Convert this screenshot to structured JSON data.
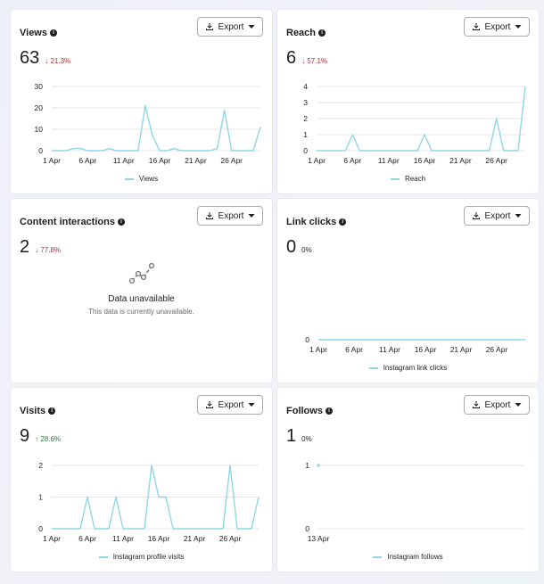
{
  "export_label": "Export",
  "cards": [
    {
      "id": "views",
      "title": "Views",
      "value": "63",
      "delta": "21.3%",
      "delta_dir": "down",
      "legend": "Views",
      "chart_data": {
        "type": "line",
        "x_tick_labels": [
          "1 Apr",
          "6 Apr",
          "11 Apr",
          "16 Apr",
          "21 Apr",
          "26 Apr"
        ],
        "y_ticks": [
          0,
          10,
          20,
          30
        ],
        "ylim": [
          0,
          30
        ],
        "x": [
          "1 Apr",
          "2 Apr",
          "3 Apr",
          "4 Apr",
          "5 Apr",
          "6 Apr",
          "7 Apr",
          "8 Apr",
          "9 Apr",
          "10 Apr",
          "11 Apr",
          "12 Apr",
          "13 Apr",
          "14 Apr",
          "15 Apr",
          "16 Apr",
          "17 Apr",
          "18 Apr",
          "19 Apr",
          "20 Apr",
          "21 Apr",
          "22 Apr",
          "23 Apr",
          "24 Apr",
          "25 Apr",
          "26 Apr",
          "27 Apr",
          "28 Apr",
          "29 Apr",
          "30 Apr"
        ],
        "series": [
          {
            "name": "Views",
            "color": "#8fd6e8",
            "values": [
              0,
              0,
              0,
              1,
              1,
              0,
              0,
              0,
              1,
              0,
              0,
              0,
              0,
              21,
              7,
              0,
              0,
              1,
              0,
              0,
              0,
              0,
              0,
              1,
              19,
              0,
              0,
              0,
              0,
              11
            ]
          }
        ]
      }
    },
    {
      "id": "reach",
      "title": "Reach",
      "value": "6",
      "delta": "57.1%",
      "delta_dir": "down",
      "legend": "Reach",
      "chart_data": {
        "type": "line",
        "x_tick_labels": [
          "1 Apr",
          "6 Apr",
          "11 Apr",
          "16 Apr",
          "21 Apr",
          "26 Apr"
        ],
        "y_ticks": [
          0,
          1,
          2,
          3,
          4
        ],
        "ylim": [
          0,
          4
        ],
        "x": [
          "1 Apr",
          "2 Apr",
          "3 Apr",
          "4 Apr",
          "5 Apr",
          "6 Apr",
          "7 Apr",
          "8 Apr",
          "9 Apr",
          "10 Apr",
          "11 Apr",
          "12 Apr",
          "13 Apr",
          "14 Apr",
          "15 Apr",
          "16 Apr",
          "17 Apr",
          "18 Apr",
          "19 Apr",
          "20 Apr",
          "21 Apr",
          "22 Apr",
          "23 Apr",
          "24 Apr",
          "25 Apr",
          "26 Apr",
          "27 Apr",
          "28 Apr",
          "29 Apr",
          "30 Apr"
        ],
        "series": [
          {
            "name": "Reach",
            "color": "#8fd6e8",
            "values": [
              0,
              0,
              0,
              0,
              0,
              1,
              0,
              0,
              0,
              0,
              0,
              0,
              0,
              0,
              0,
              1,
              0,
              0,
              0,
              0,
              0,
              0,
              0,
              0,
              0,
              2,
              0,
              0,
              0,
              4
            ]
          }
        ]
      }
    },
    {
      "id": "content-interactions",
      "title": "Content interactions",
      "value": "2",
      "delta": "77.8%",
      "delta_dir": "down",
      "unavailable_title": "Data unavailable",
      "unavailable_sub": "This data is currently unavailable."
    },
    {
      "id": "link-clicks",
      "title": "Link clicks",
      "value": "0",
      "delta": "0%",
      "delta_dir": "neutral",
      "legend": "Instagram link clicks",
      "chart_data": {
        "type": "line",
        "x_tick_labels": [
          "1 Apr",
          "6 Apr",
          "11 Apr",
          "16 Apr",
          "21 Apr",
          "26 Apr"
        ],
        "y_ticks": [
          0
        ],
        "ylim": [
          0,
          1
        ],
        "x": [
          "1 Apr",
          "2 Apr",
          "3 Apr",
          "4 Apr",
          "5 Apr",
          "6 Apr",
          "7 Apr",
          "8 Apr",
          "9 Apr",
          "10 Apr",
          "11 Apr",
          "12 Apr",
          "13 Apr",
          "14 Apr",
          "15 Apr",
          "16 Apr",
          "17 Apr",
          "18 Apr",
          "19 Apr",
          "20 Apr",
          "21 Apr",
          "22 Apr",
          "23 Apr",
          "24 Apr",
          "25 Apr",
          "26 Apr",
          "27 Apr",
          "28 Apr",
          "29 Apr",
          "30 Apr"
        ],
        "series": [
          {
            "name": "Instagram link clicks",
            "color": "#8fd6e8",
            "values": [
              0,
              0,
              0,
              0,
              0,
              0,
              0,
              0,
              0,
              0,
              0,
              0,
              0,
              0,
              0,
              0,
              0,
              0,
              0,
              0,
              0,
              0,
              0,
              0,
              0,
              0,
              0,
              0,
              0,
              0
            ]
          }
        ]
      }
    },
    {
      "id": "visits",
      "title": "Visits",
      "value": "9",
      "delta": "28.6%",
      "delta_dir": "up",
      "legend": "Instagram profile visits",
      "chart_data": {
        "type": "line",
        "x_tick_labels": [
          "1 Apr",
          "6 Apr",
          "11 Apr",
          "16 Apr",
          "21 Apr",
          "26 Apr"
        ],
        "y_ticks": [
          0,
          1,
          2
        ],
        "ylim": [
          0,
          2
        ],
        "x": [
          "1 Apr",
          "2 Apr",
          "3 Apr",
          "4 Apr",
          "5 Apr",
          "6 Apr",
          "7 Apr",
          "8 Apr",
          "9 Apr",
          "10 Apr",
          "11 Apr",
          "12 Apr",
          "13 Apr",
          "14 Apr",
          "15 Apr",
          "16 Apr",
          "17 Apr",
          "18 Apr",
          "19 Apr",
          "20 Apr",
          "21 Apr",
          "22 Apr",
          "23 Apr",
          "24 Apr",
          "25 Apr",
          "26 Apr",
          "27 Apr",
          "28 Apr",
          "29 Apr",
          "30 Apr"
        ],
        "series": [
          {
            "name": "Instagram profile visits",
            "color": "#8fd6e8",
            "values": [
              0,
              0,
              0,
              0,
              0,
              1,
              0,
              0,
              0,
              1,
              0,
              0,
              0,
              0,
              2,
              1,
              1,
              0,
              0,
              0,
              0,
              0,
              0,
              0,
              0,
              2,
              0,
              0,
              0,
              1
            ]
          }
        ]
      }
    },
    {
      "id": "follows",
      "title": "Follows",
      "value": "1",
      "delta": "0%",
      "delta_dir": "neutral",
      "legend": "Instagram follows",
      "chart_data": {
        "type": "line",
        "x_tick_labels": [
          "13 Apr"
        ],
        "y_ticks": [
          0,
          1
        ],
        "ylim": [
          0,
          1
        ],
        "x": [
          "13 Apr"
        ],
        "series": [
          {
            "name": "Instagram follows",
            "color": "#8fd6e8",
            "values": [
              1
            ]
          }
        ]
      }
    }
  ]
}
